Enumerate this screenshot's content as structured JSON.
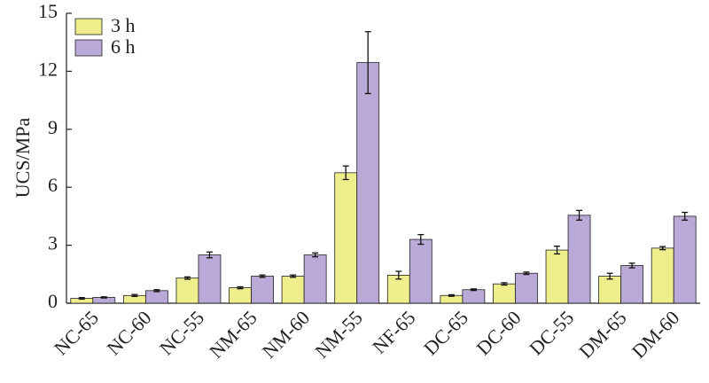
{
  "chart_data": {
    "type": "bar",
    "y_label": "UCS/MPa",
    "categories": [
      "NC-65",
      "NC-60",
      "NC-55",
      "NM-65",
      "NM-60",
      "NM-55",
      "NF-65",
      "DC-65",
      "DC-60",
      "DC-55",
      "DM-65",
      "DM-60"
    ],
    "series": [
      {
        "name": "3 h",
        "color": "#eeee8c",
        "values": [
          0.25,
          0.4,
          1.3,
          0.8,
          1.4,
          6.75,
          1.45,
          0.4,
          1.0,
          2.75,
          1.4,
          2.85
        ],
        "errors": [
          0.04,
          0.05,
          0.06,
          0.05,
          0.06,
          0.35,
          0.2,
          0.04,
          0.06,
          0.2,
          0.15,
          0.08
        ]
      },
      {
        "name": "6 h",
        "color": "#b9a9d6",
        "values": [
          0.3,
          0.65,
          2.5,
          1.4,
          2.5,
          12.45,
          3.3,
          0.7,
          1.55,
          4.55,
          1.95,
          4.5
        ],
        "errors": [
          0.03,
          0.05,
          0.15,
          0.06,
          0.1,
          1.6,
          0.25,
          0.04,
          0.06,
          0.25,
          0.12,
          0.2
        ]
      }
    ],
    "ylim": [
      0,
      15
    ],
    "yticks": [
      0,
      3,
      6,
      9,
      12,
      15
    ],
    "legend": "upper left"
  }
}
